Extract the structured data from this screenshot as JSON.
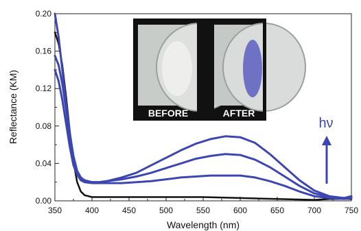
{
  "chart_data": {
    "type": "line",
    "xlabel": "Wavelength (nm)",
    "ylabel": "Reflectance (KM)",
    "xlim": [
      350,
      750
    ],
    "ylim": [
      0,
      0.2
    ],
    "x_ticks": [
      "350",
      "400",
      "450",
      "500",
      "550",
      "600",
      "650",
      "700",
      "750"
    ],
    "y_ticks": [
      "0.00",
      "0.04",
      "0.08",
      "0.12",
      "0.16",
      "0.20"
    ],
    "grid": false,
    "series": [
      {
        "color": "#111111",
        "x": [
          350,
          355,
          360,
          365,
          370,
          375,
          380,
          385,
          390,
          400,
          420,
          450,
          500,
          550,
          600,
          650,
          700,
          720,
          740,
          750
        ],
        "y": [
          0.18,
          0.168,
          0.145,
          0.112,
          0.075,
          0.042,
          0.02,
          0.01,
          0.006,
          0.004,
          0.004,
          0.004,
          0.004,
          0.004,
          0.003,
          0.002,
          0.001,
          0.002,
          0.002,
          0.002
        ]
      },
      {
        "color": "#3c46b0",
        "x": [
          350,
          355,
          360,
          365,
          370,
          375,
          380,
          385,
          390,
          400,
          410,
          420,
          440,
          460,
          480,
          500,
          520,
          540,
          560,
          580,
          600,
          620,
          640,
          660,
          680,
          700,
          720,
          740,
          750
        ],
        "y": [
          0.14,
          0.128,
          0.108,
          0.083,
          0.058,
          0.038,
          0.028,
          0.022,
          0.02,
          0.019,
          0.019,
          0.019,
          0.019,
          0.02,
          0.021,
          0.023,
          0.025,
          0.026,
          0.027,
          0.027,
          0.027,
          0.025,
          0.021,
          0.016,
          0.01,
          0.005,
          0.003,
          0.002,
          0.003
        ]
      },
      {
        "color": "#3c46b0",
        "x": [
          350,
          355,
          360,
          365,
          370,
          375,
          380,
          385,
          390,
          400,
          410,
          420,
          440,
          460,
          480,
          500,
          520,
          540,
          560,
          580,
          600,
          620,
          640,
          660,
          680,
          700,
          720,
          740,
          750
        ],
        "y": [
          0.155,
          0.145,
          0.125,
          0.098,
          0.068,
          0.044,
          0.03,
          0.024,
          0.021,
          0.02,
          0.02,
          0.021,
          0.023,
          0.026,
          0.03,
          0.035,
          0.04,
          0.045,
          0.048,
          0.05,
          0.049,
          0.044,
          0.036,
          0.026,
          0.016,
          0.008,
          0.004,
          0.003,
          0.004
        ]
      },
      {
        "color": "#3c46b0",
        "x": [
          350,
          355,
          360,
          365,
          370,
          375,
          380,
          385,
          390,
          400,
          410,
          420,
          440,
          460,
          480,
          500,
          520,
          540,
          560,
          580,
          600,
          620,
          640,
          660,
          680,
          700,
          720,
          740,
          750
        ],
        "y": [
          0.2,
          0.175,
          0.14,
          0.105,
          0.073,
          0.048,
          0.032,
          0.025,
          0.022,
          0.02,
          0.02,
          0.021,
          0.025,
          0.03,
          0.038,
          0.046,
          0.054,
          0.061,
          0.066,
          0.069,
          0.068,
          0.062,
          0.05,
          0.036,
          0.022,
          0.011,
          0.005,
          0.003,
          0.005
        ]
      }
    ],
    "annotations": {
      "hv_label": "hν",
      "hv_color": "#3c46b0",
      "inset_labels": [
        "BEFORE",
        "AFTER"
      ]
    }
  }
}
